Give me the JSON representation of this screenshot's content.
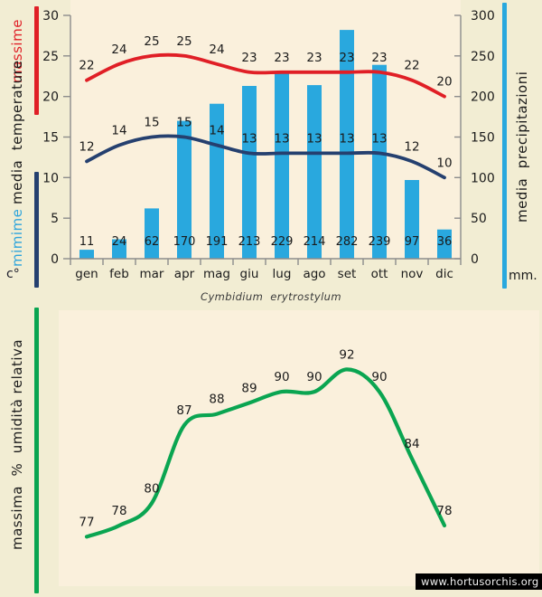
{
  "colors": {
    "background": "#f2edd3",
    "plot_background": "#faf0dc",
    "red": "#e01f26",
    "navy": "#25406f",
    "cyan": "#29a8de",
    "cyan_text": "#2da4dc",
    "green": "#0aa551",
    "axis": "#8c8c8c",
    "text": "#1b1b1b"
  },
  "labels": {
    "massime": "massime",
    "media_temperature": "media  temperature",
    "mimime": "mimime",
    "celsius_unit": "c°",
    "media_precipitazioni": "media  precipitazioni",
    "mm_unit": "mm.",
    "umidita": "massima  %  umidità relativa",
    "title": "Cymbidium  erytrostylum"
  },
  "watermark": {
    "text": "www.hortusorchis.org"
  },
  "chart_data": [
    {
      "id": "climate",
      "type": "bar",
      "subtype": "combo-bar-and-lines",
      "title": "Cymbidium erytrostylum",
      "categories": [
        "gen",
        "feb",
        "mar",
        "apr",
        "mag",
        "giu",
        "lug",
        "ago",
        "set",
        "ott",
        "nov",
        "dic"
      ],
      "series": [
        {
          "name": "massime",
          "type": "line",
          "axis": "temperature",
          "color_key": "red",
          "values": [
            22,
            24,
            25,
            25,
            24,
            23,
            23,
            23,
            23,
            23,
            22,
            20
          ]
        },
        {
          "name": "mimime",
          "type": "line",
          "axis": "temperature",
          "color_key": "navy",
          "values": [
            12,
            14,
            15,
            15,
            14,
            13,
            13,
            13,
            13,
            13,
            12,
            10
          ]
        },
        {
          "name": "media precipitazioni",
          "type": "bar",
          "axis": "precipitation",
          "color_key": "cyan",
          "values": [
            11,
            24,
            62,
            170,
            191,
            213,
            229,
            214,
            282,
            239,
            97,
            36
          ]
        }
      ],
      "temperature_axis": {
        "label": "media temperature",
        "unit": "c°",
        "min": 0,
        "max": 30,
        "ticks": [
          0,
          5,
          10,
          15,
          20,
          25,
          30
        ],
        "side": "left"
      },
      "precipitation_axis": {
        "label": "media precipitazioni",
        "unit": "mm.",
        "min": 0,
        "max": 300,
        "ticks": [
          0,
          50,
          100,
          150,
          200,
          250,
          300
        ],
        "side": "right"
      },
      "grid": false,
      "data_labels": true
    },
    {
      "id": "humidity",
      "type": "line",
      "categories": [
        "gen",
        "feb",
        "mar",
        "apr",
        "mag",
        "giu",
        "lug",
        "ago",
        "set",
        "ott",
        "nov",
        "dic"
      ],
      "series": [
        {
          "name": "massima % umidità relativa",
          "color_key": "green",
          "values": [
            77,
            78,
            80,
            87,
            88,
            89,
            90,
            90,
            92,
            90,
            84,
            78
          ]
        }
      ],
      "ylabel": "massima % umidità relativa",
      "axis_visible": false,
      "value_range_estimate": [
        75,
        93
      ],
      "grid": false,
      "data_labels": true
    }
  ]
}
